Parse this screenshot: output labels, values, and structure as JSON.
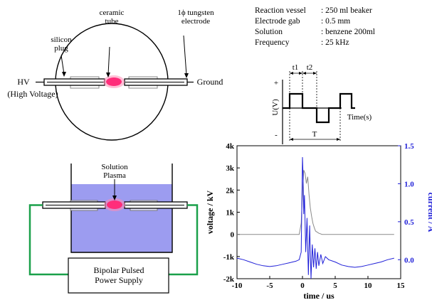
{
  "top_diagram": {
    "ceramic_label_1": "ceramic",
    "ceramic_label_2": "tube",
    "tungsten_label_1": "1ϕ tungsten",
    "tungsten_label_2": "electrode",
    "silicon_label_1": "silicon",
    "silicon_label_2": "plug",
    "hv_label": "HV",
    "hv_full_label": "(High Voltage)",
    "ground_label": "Ground"
  },
  "specs": [
    {
      "name": "Reaction vessel",
      "value": ": 250 ml beaker"
    },
    {
      "name": "Electrode gab",
      "value": ": 0.5 mm"
    },
    {
      "name": "Solution",
      "value": ": benzene  200ml"
    },
    {
      "name": "Frequency",
      "value": ": 25 kHz"
    }
  ],
  "waveform": {
    "plus": "+",
    "minus": "-",
    "t1": "t1",
    "t2": "t2",
    "period": "T",
    "ylabel": "U(V)",
    "xlabel": "Time(s)"
  },
  "bottom_diagram": {
    "plasma_label_1": "Solution",
    "plasma_label_2": "Plasma",
    "supply_label_1": "Bipolar Pulsed",
    "supply_label_2": "Power Supply",
    "liquid_color": "#9c9cf0",
    "wire_color": "#1aa04a",
    "plasma_color": "#ff2d7a"
  },
  "chart_data": {
    "type": "line",
    "xlabel": "time / us",
    "ylabel_left": "voltage / kV",
    "ylabel_right": "current / A",
    "xlim": [
      -10,
      15
    ],
    "xticks": [
      -10,
      -5,
      0,
      5,
      10,
      15
    ],
    "ylim_left": [
      -2,
      4
    ],
    "yticks_left": [
      "-2k",
      "-1k",
      "0",
      "1k",
      "2k",
      "3k",
      "4k"
    ],
    "ylim_right": [
      -0.25,
      1.5
    ],
    "yticks_right": [
      "0.0",
      "0.5",
      "1.0",
      "1.5"
    ],
    "right_axis_color": "#1f1fd8",
    "series": [
      {
        "axis": "left",
        "color": "#8a8a8a",
        "x": [
          -10,
          -8,
          -6,
          -4,
          -2,
          -0.5,
          -0.2,
          0,
          0.2,
          0.4,
          0.6,
          0.8,
          1.0,
          1.2,
          1.4,
          1.6,
          1.8,
          2.0,
          2.5,
          3,
          5,
          8,
          10,
          12,
          14
        ],
        "values": [
          0,
          0,
          0,
          0,
          0,
          0,
          0.5,
          1.8,
          2.9,
          2.75,
          2.3,
          2.6,
          1.8,
          1.2,
          0.8,
          0.5,
          0.3,
          0.15,
          0.05,
          0,
          0,
          0,
          0,
          0,
          0
        ]
      },
      {
        "axis": "right",
        "color": "#1f1fd8",
        "x": [
          -10,
          -9,
          -8,
          -7,
          -6,
          -5,
          -4,
          -3,
          -2,
          -1,
          -0.5,
          -0.2,
          0,
          0.1,
          0.2,
          0.3,
          0.5,
          0.7,
          0.9,
          1.1,
          1.3,
          1.5,
          1.7,
          1.9,
          2.1,
          2.3,
          2.5,
          2.8,
          3.1,
          3.5,
          4,
          5,
          6,
          7,
          8,
          9,
          10,
          11,
          12,
          13,
          14
        ],
        "values": [
          0.02,
          0.0,
          -0.03,
          -0.06,
          -0.08,
          -0.09,
          -0.08,
          -0.06,
          -0.04,
          -0.02,
          0.0,
          0.1,
          1.35,
          1.1,
          0.6,
          0.85,
          0.1,
          0.55,
          -0.2,
          0.45,
          -0.25,
          0.2,
          -0.1,
          0.15,
          -0.12,
          0.1,
          -0.08,
          0.07,
          -0.05,
          0.04,
          0.0,
          -0.03,
          -0.07,
          -0.09,
          -0.1,
          -0.09,
          -0.07,
          -0.05,
          -0.03,
          0.0,
          0.02
        ]
      }
    ]
  }
}
